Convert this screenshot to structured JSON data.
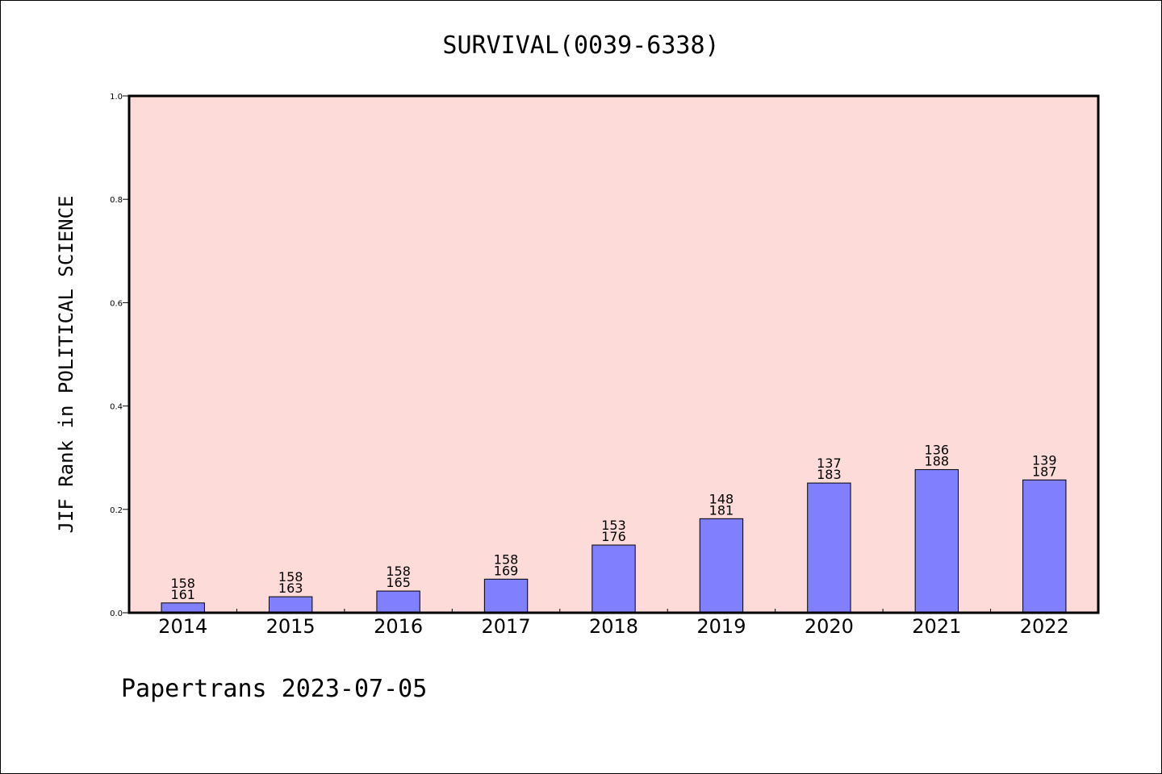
{
  "chart_data": {
    "type": "bar",
    "title": "SURVIVAL(0039-6338)",
    "ylabel": "JIF Rank in POLITICAL SCIENCE",
    "xlabel": "",
    "ylim": [
      0,
      1.0
    ],
    "yticks": [
      "0.0",
      "0.2",
      "0.4",
      "0.6",
      "0.8",
      "1.0"
    ],
    "categories": [
      "2014",
      "2015",
      "2016",
      "2017",
      "2018",
      "2019",
      "2020",
      "2021",
      "2022"
    ],
    "values": [
      0.019,
      0.031,
      0.042,
      0.065,
      0.131,
      0.182,
      0.251,
      0.277,
      0.257
    ],
    "rank": [
      "158",
      "158",
      "158",
      "158",
      "153",
      "148",
      "137",
      "136",
      "139"
    ],
    "total": [
      "161",
      "163",
      "165",
      "169",
      "176",
      "181",
      "183",
      "188",
      "187"
    ],
    "grid": false,
    "legend": "none"
  },
  "footer": "Papertrans 2023-07-05",
  "colors": {
    "plot_bg": "#fddbd8",
    "bar_fill": "#8080ff",
    "bar_stroke": "#000000"
  }
}
